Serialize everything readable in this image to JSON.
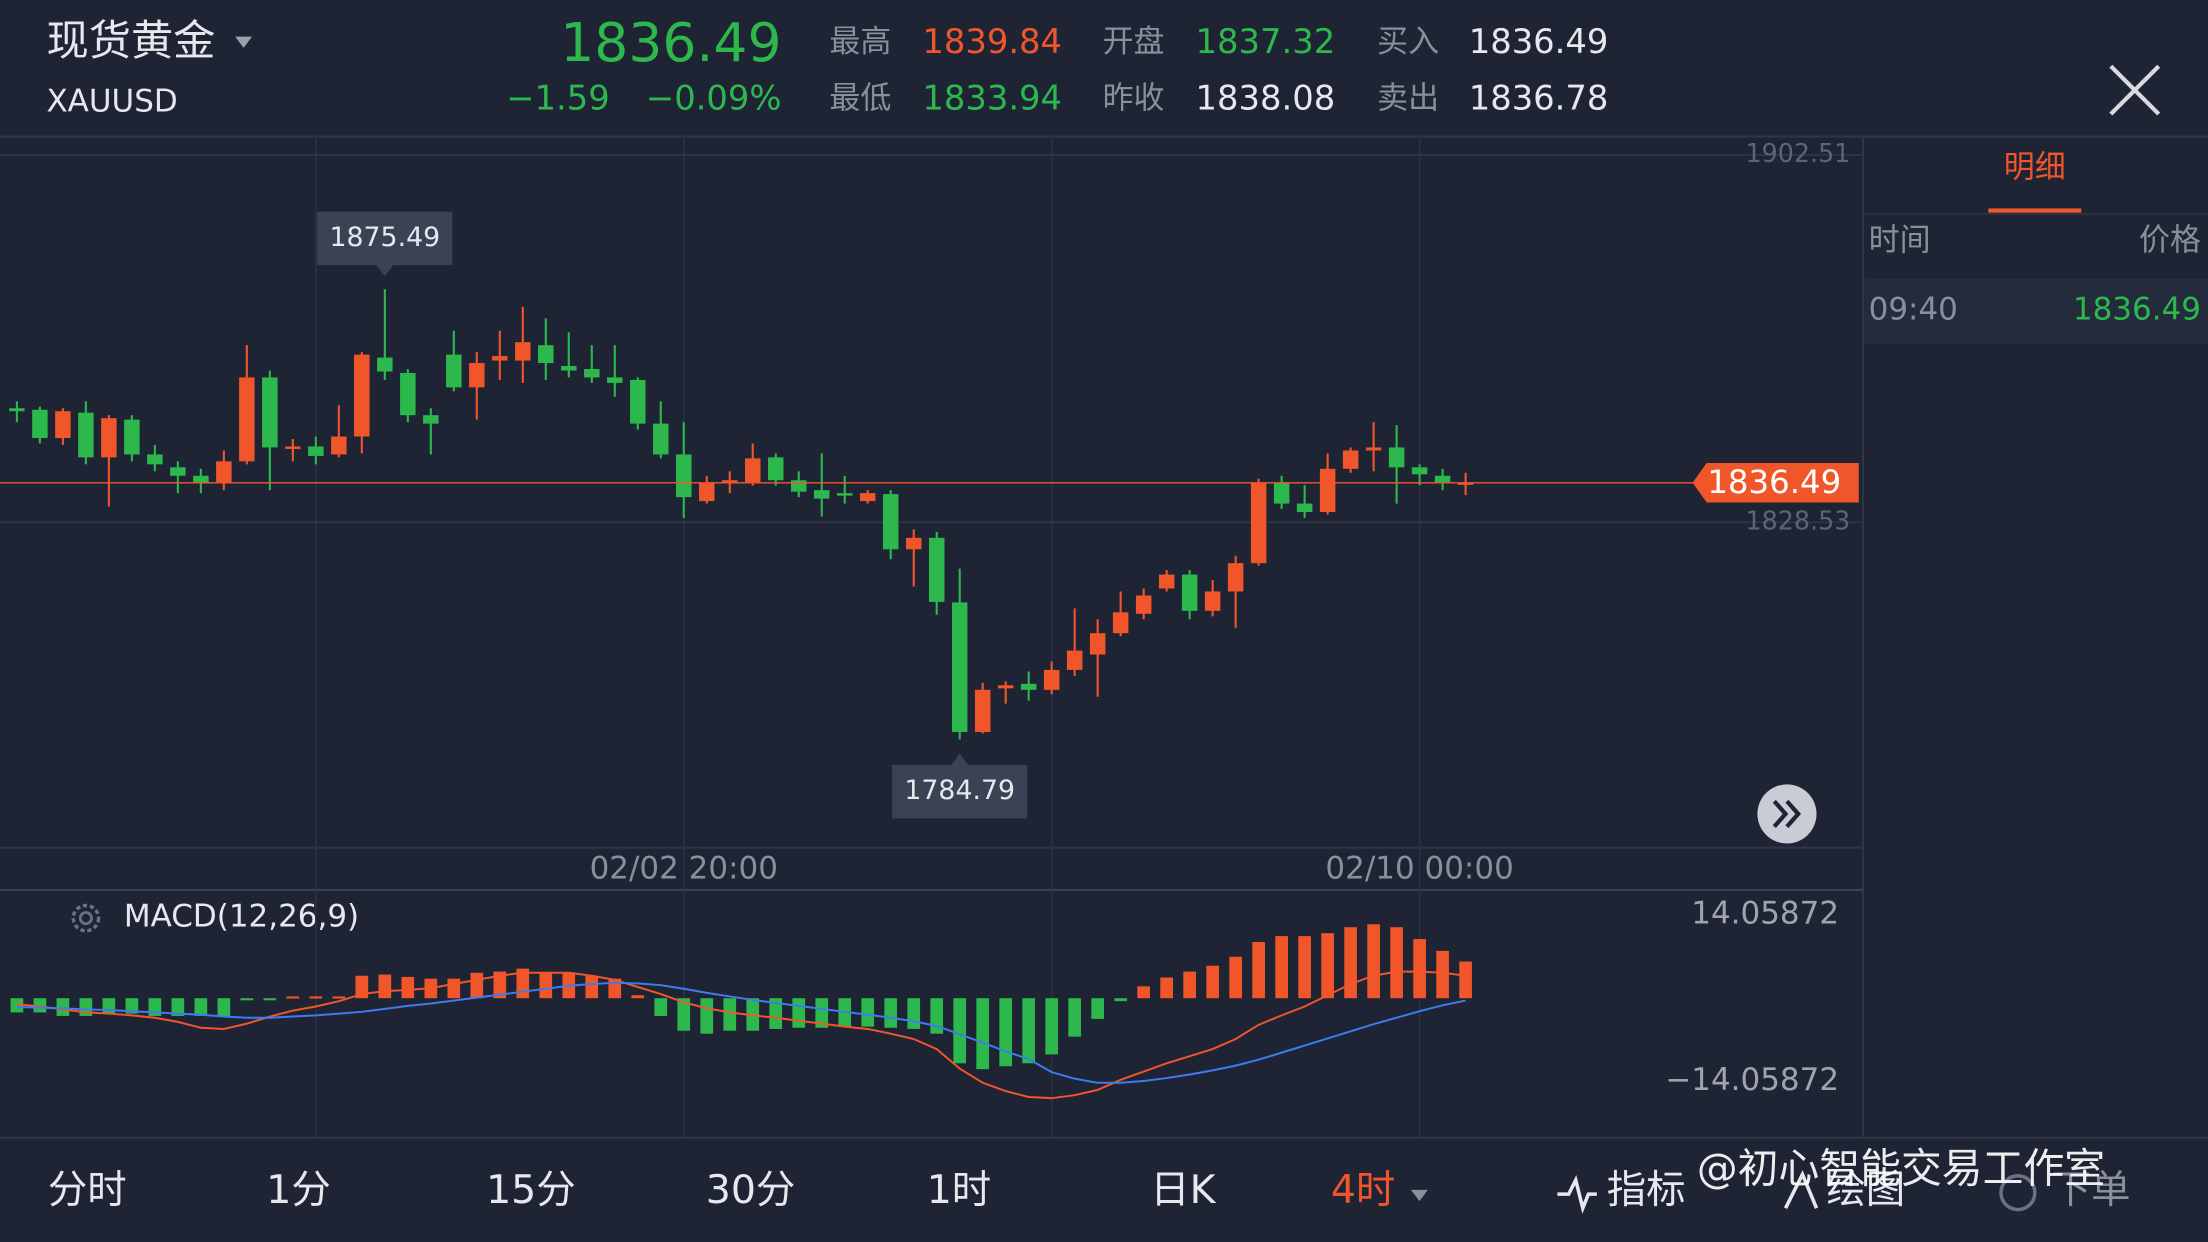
{
  "header": {
    "name": "现货黄金",
    "symbol": "XAUUSD",
    "price": "1836.49",
    "change": "−1.59",
    "change_pct": "−0.09%",
    "stats": [
      {
        "label": "最高",
        "value": "1839.84"
      },
      {
        "label": "最低",
        "value": "1833.94"
      },
      {
        "label": "开盘",
        "value": "1837.32"
      },
      {
        "label": "昨收",
        "value": "1838.08"
      },
      {
        "label": "买入",
        "value": "1836.49"
      },
      {
        "label": "卖出",
        "value": "1836.78"
      }
    ]
  },
  "chart_data": [
    {
      "type": "candlestick",
      "categories": [
        null,
        null,
        null,
        null,
        null,
        null,
        null,
        null,
        null,
        null,
        null,
        null,
        null,
        null,
        null,
        null,
        null,
        null,
        null,
        null,
        null,
        null,
        null,
        null,
        null,
        null,
        null,
        null,
        null,
        "02/02 20:00",
        null,
        null,
        null,
        null,
        null,
        null,
        null,
        null,
        null,
        null,
        null,
        null,
        null,
        null,
        null,
        null,
        null,
        null,
        null,
        null,
        null,
        null,
        null,
        null,
        null,
        null,
        null,
        null,
        null,
        null,
        null,
        "02/10 00:00",
        null,
        null
      ],
      "open": [
        1851.5,
        1851.2,
        1845.5,
        1850.6,
        1841.6,
        1849.2,
        1842.2,
        1839.6,
        1837.9,
        1836.5,
        1840.8,
        1857.7,
        1843.3,
        1843.8,
        1842.2,
        1845.8,
        1861.7,
        1858.6,
        1850.1,
        1862.3,
        1855.7,
        1861.1,
        1861.1,
        1864.2,
        1860.0,
        1859.4,
        1857.7,
        1857.2,
        1848.4,
        1842.2,
        1832.8,
        1836.5,
        1836.5,
        1841.6,
        1837.0,
        1835.0,
        1834.4,
        1832.8,
        1834.2,
        1823.1,
        1825.4,
        1812.4,
        1786.3,
        1795.1,
        1796.0,
        1794.8,
        1798.8,
        1801.9,
        1806.2,
        1810.1,
        1815.2,
        1818.0,
        1810.7,
        1814.6,
        1820.3,
        1836.5,
        1832.3,
        1830.6,
        1839.3,
        1843.0,
        1843.6,
        1839.6,
        1837.9,
        1836.2
      ],
      "high": [
        1852.9,
        1851.8,
        1851.5,
        1852.9,
        1850.1,
        1850.1,
        1844.1,
        1840.8,
        1839.3,
        1843.0,
        1864.2,
        1859.1,
        1845.3,
        1845.8,
        1852.1,
        1862.8,
        1875.49,
        1859.4,
        1851.5,
        1867.1,
        1862.8,
        1867.1,
        1871.9,
        1869.6,
        1866.8,
        1864.2,
        1864.2,
        1857.7,
        1852.9,
        1848.7,
        1837.9,
        1838.8,
        1844.4,
        1842.4,
        1838.8,
        1842.4,
        1837.9,
        1835.0,
        1835.0,
        1827.1,
        1826.6,
        1819.2,
        1796.2,
        1796.5,
        1798.5,
        1800.5,
        1811.2,
        1809.0,
        1814.6,
        1815.2,
        1818.9,
        1818.9,
        1816.9,
        1821.8,
        1837.3,
        1837.9,
        1836.0,
        1842.4,
        1843.6,
        1848.7,
        1848.1,
        1840.2,
        1839.3,
        1838.5
      ],
      "low": [
        1848.7,
        1844.4,
        1844.1,
        1840.2,
        1831.7,
        1840.8,
        1838.8,
        1834.4,
        1834.4,
        1835.0,
        1840.2,
        1835.0,
        1840.8,
        1840.2,
        1841.6,
        1842.4,
        1857.2,
        1848.7,
        1842.2,
        1854.9,
        1849.2,
        1857.2,
        1856.6,
        1857.2,
        1857.7,
        1856.6,
        1853.8,
        1847.2,
        1841.4,
        1829.4,
        1832.3,
        1834.4,
        1835.9,
        1835.9,
        1833.6,
        1829.7,
        1832.3,
        1832.3,
        1821.1,
        1815.6,
        1809.9,
        1784.79,
        1786.0,
        1792.0,
        1792.6,
        1793.9,
        1797.6,
        1793.4,
        1805.6,
        1809.0,
        1814.6,
        1809.0,
        1809.6,
        1807.3,
        1819.8,
        1831.2,
        1829.4,
        1830.1,
        1838.5,
        1838.8,
        1832.3,
        1836.0,
        1835.0,
        1834.0
      ],
      "close": [
        1850.9,
        1845.5,
        1850.9,
        1841.6,
        1849.5,
        1842.2,
        1840.2,
        1837.9,
        1836.5,
        1840.8,
        1857.7,
        1843.6,
        1843.8,
        1841.9,
        1845.8,
        1862.3,
        1858.9,
        1850.1,
        1848.4,
        1855.7,
        1860.6,
        1862.0,
        1864.8,
        1860.6,
        1859.1,
        1857.7,
        1856.6,
        1848.4,
        1842.2,
        1833.6,
        1836.5,
        1837.0,
        1841.4,
        1837.0,
        1834.7,
        1833.3,
        1833.9,
        1834.4,
        1823.1,
        1825.4,
        1812.5,
        1786.3,
        1794.8,
        1795.7,
        1794.8,
        1798.8,
        1802.7,
        1806.2,
        1810.4,
        1813.8,
        1818.0,
        1810.7,
        1814.6,
        1820.3,
        1836.5,
        1832.3,
        1830.6,
        1839.3,
        1843.0,
        1843.6,
        1839.6,
        1838.2,
        1836.5,
        1836.49
      ],
      "up_color": "#f0562a",
      "down_color": "#2db84d",
      "ylim": [
        1763.0,
        1906.2
      ],
      "yticks": [
        1902.51,
        1828.53
      ],
      "grid": true
    },
    {
      "type": "macd",
      "title": "MACD(12,26,9)",
      "values": [
        -2.4,
        -2.4,
        -3,
        -3,
        -2.6,
        -2.6,
        -3,
        -3,
        -3,
        -3,
        -0.3,
        -0.3,
        0.3,
        0.3,
        0.3,
        3.8,
        4.0,
        3.6,
        3.3,
        3.3,
        4.3,
        4.5,
        5.0,
        4.3,
        4.3,
        3.8,
        3.3,
        0.5,
        -3,
        -5.5,
        -6,
        -5.5,
        -5.5,
        -5.2,
        -5,
        -5,
        -4.8,
        -4.8,
        -5,
        -5.2,
        -6,
        -11,
        -12,
        -11.5,
        -11,
        -9.5,
        -6.5,
        -3.5,
        -0.5,
        2,
        3.5,
        4.5,
        5.5,
        7,
        9.5,
        10.5,
        10.5,
        11,
        12,
        12.5,
        12,
        10,
        8,
        6.2
      ],
      "up_color": "#f0562a",
      "down_color": "#2db84d",
      "lines": [
        {
          "color": "#f0562a",
          "values": [
            -1.0,
            -1.4,
            -1.9,
            -2.4,
            -2.6,
            -2.9,
            -3.3,
            -4.0,
            -5.0,
            -5.2,
            -4.3,
            -3.1,
            -2.1,
            -1.4,
            -0.5,
            0.7,
            1.2,
            1.4,
            1.7,
            2.4,
            3.1,
            3.8,
            4.3,
            4.3,
            4.3,
            3.8,
            3.1,
            1.9,
            0.7,
            -0.7,
            -1.7,
            -2.4,
            -2.9,
            -3.3,
            -3.8,
            -4.3,
            -4.8,
            -5.2,
            -6.0,
            -6.9,
            -8.6,
            -11.9,
            -14.3,
            -15.7,
            -16.7,
            -16.9,
            -16.4,
            -15.5,
            -13.8,
            -12.4,
            -11.0,
            -9.8,
            -8.6,
            -6.9,
            -4.5,
            -2.9,
            -1.4,
            0.5,
            2.4,
            3.8,
            4.5,
            4.5,
            4.3,
            3.8
          ]
        },
        {
          "color": "#3d7cf0",
          "values": [
            -1.5,
            -1.6,
            -1.7,
            -1.9,
            -2.0,
            -2.2,
            -2.4,
            -2.6,
            -2.8,
            -3.1,
            -3.3,
            -3.3,
            -3.1,
            -2.9,
            -2.6,
            -2.3,
            -1.8,
            -1.3,
            -0.9,
            -0.4,
            0.1,
            0.6,
            1.1,
            1.6,
            2.1,
            2.4,
            2.6,
            2.5,
            2.2,
            1.6,
            0.9,
            0.3,
            -0.3,
            -0.8,
            -1.3,
            -1.8,
            -2.3,
            -2.8,
            -3.3,
            -3.9,
            -4.7,
            -6.1,
            -7.5,
            -9.0,
            -10.3,
            -12.5,
            -13.6,
            -14.3,
            -14.3,
            -14.0,
            -13.5,
            -12.9,
            -12.2,
            -11.4,
            -10.4,
            -9.2,
            -8.0,
            -6.8,
            -5.6,
            -4.4,
            -3.3,
            -2.2,
            -1.2,
            -0.4
          ]
        }
      ],
      "ylim": [
        -23.6,
        18.3
      ],
      "yticks": [
        14.05872,
        {
          "value": -14.05872,
          "label": "−14.05872"
        }
      ]
    }
  ],
  "detail": {
    "tab": "明细",
    "columns": [
      "时间",
      "价格"
    ],
    "rows": [
      [
        "09:40",
        "1836.49"
      ]
    ]
  },
  "toolbar": {
    "periods": [
      "分时",
      "1分",
      "15分",
      "30分",
      "1时",
      "日K",
      "4时"
    ],
    "active": 6,
    "tools": [
      "指标",
      "绘图",
      "下单"
    ]
  },
  "watermark": "@初心智能交易工作室"
}
